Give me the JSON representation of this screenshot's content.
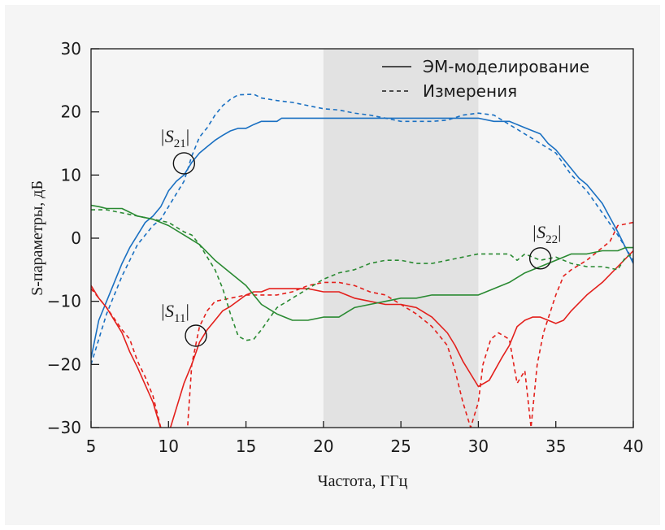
{
  "chart_data": {
    "type": "line",
    "xlabel": "Частота, ГГц",
    "ylabel": "S-параметры, дБ",
    "xlim": [
      5,
      40
    ],
    "ylim": [
      -30,
      30
    ],
    "xticks": [
      5,
      10,
      15,
      20,
      25,
      30,
      35,
      40
    ],
    "yticks": [
      30,
      20,
      10,
      0,
      -10,
      -20,
      -30
    ],
    "ytick_labels": [
      "30",
      "20",
      "10",
      "0",
      "−10",
      "−20",
      "−30"
    ],
    "grid": false,
    "shaded_band": {
      "x": [
        20,
        30
      ],
      "color": "#e2e2e2"
    },
    "legend": {
      "placement": "top-right",
      "entries": [
        {
          "label": "ЭМ-моделирование",
          "style": "solid"
        },
        {
          "label": "Измерения",
          "style": "dashed"
        }
      ]
    },
    "colors": {
      "s21": "#1a70c2",
      "s11": "#e3201c",
      "s22": "#2a8a32",
      "axis": "#1a1a1a",
      "background": "#f5f5f5"
    },
    "series": [
      {
        "name": "|S21| ЭМ-моделирование",
        "color_key": "s21",
        "style": "solid",
        "points": [
          [
            5,
            -19
          ],
          [
            5.5,
            -13
          ],
          [
            6,
            -10
          ],
          [
            7,
            -4
          ],
          [
            7.5,
            -1.5
          ],
          [
            8,
            0.5
          ],
          [
            8.5,
            2.5
          ],
          [
            9,
            3.5
          ],
          [
            9.5,
            5
          ],
          [
            10,
            7.5
          ],
          [
            10.5,
            9
          ],
          [
            11,
            10
          ],
          [
            11.5,
            12
          ],
          [
            12,
            13.5
          ],
          [
            12.5,
            14.5
          ],
          [
            13,
            15.5
          ],
          [
            13.5,
            16.3
          ],
          [
            14,
            17
          ],
          [
            14.5,
            17.4
          ],
          [
            15,
            17.4
          ],
          [
            15.5,
            18
          ],
          [
            16,
            18.5
          ],
          [
            17,
            18.5
          ],
          [
            17.3,
            19
          ],
          [
            20,
            19
          ],
          [
            25,
            19
          ],
          [
            30,
            19
          ],
          [
            31,
            18.5
          ],
          [
            32,
            18.5
          ],
          [
            33,
            17.5
          ],
          [
            34,
            16.5
          ],
          [
            34.5,
            15
          ],
          [
            35,
            14
          ],
          [
            35.5,
            12.5
          ],
          [
            36,
            11
          ],
          [
            36.5,
            9.5
          ],
          [
            37,
            8.5
          ],
          [
            38,
            5.5
          ],
          [
            39,
            1
          ],
          [
            40,
            -4
          ]
        ]
      },
      {
        "name": "|S21| Измерения",
        "color_key": "s21",
        "style": "dashed",
        "points": [
          [
            5,
            -20
          ],
          [
            6,
            -12
          ],
          [
            7,
            -6
          ],
          [
            8,
            -1
          ],
          [
            9,
            2
          ],
          [
            9.5,
            3
          ],
          [
            10,
            5
          ],
          [
            10.5,
            7
          ],
          [
            11,
            9
          ],
          [
            11.5,
            13
          ],
          [
            12,
            16
          ],
          [
            12.5,
            17.5
          ],
          [
            13,
            19.5
          ],
          [
            13.5,
            21
          ],
          [
            14,
            22
          ],
          [
            14.5,
            22.7
          ],
          [
            15.5,
            22.8
          ],
          [
            16,
            22.2
          ],
          [
            17,
            21.8
          ],
          [
            18,
            21.5
          ],
          [
            19,
            21
          ],
          [
            20,
            20.5
          ],
          [
            21,
            20.3
          ],
          [
            22,
            19.8
          ],
          [
            23,
            19.5
          ],
          [
            24,
            19
          ],
          [
            25,
            18.5
          ],
          [
            27,
            18.5
          ],
          [
            28,
            18.7
          ],
          [
            29,
            19.5
          ],
          [
            30,
            19.8
          ],
          [
            31,
            19.5
          ],
          [
            32,
            18
          ],
          [
            33,
            16.5
          ],
          [
            34,
            15
          ],
          [
            35,
            13.5
          ],
          [
            36,
            10
          ],
          [
            37,
            7.5
          ],
          [
            38,
            4
          ],
          [
            39,
            0.5
          ],
          [
            40,
            -3.5
          ]
        ]
      },
      {
        "name": "|S11| ЭМ-моделирование",
        "color_key": "s11",
        "style": "solid",
        "points": [
          [
            5,
            -7.5
          ],
          [
            5.5,
            -9.5
          ],
          [
            6,
            -11
          ],
          [
            7,
            -15
          ],
          [
            7.5,
            -18
          ],
          [
            8,
            -20.5
          ],
          [
            9,
            -26
          ],
          [
            9.6,
            -31
          ],
          [
            10,
            -31
          ],
          [
            10.5,
            -27
          ],
          [
            11,
            -23
          ],
          [
            11.5,
            -20
          ],
          [
            12,
            -16.5
          ],
          [
            12.5,
            -14.5
          ],
          [
            13,
            -13
          ],
          [
            13.5,
            -11.5
          ],
          [
            14,
            -10.8
          ],
          [
            15,
            -9
          ],
          [
            15.5,
            -8.5
          ],
          [
            16,
            -8.5
          ],
          [
            16.5,
            -8
          ],
          [
            19,
            -8
          ],
          [
            20,
            -8.5
          ],
          [
            21,
            -8.5
          ],
          [
            22,
            -9.5
          ],
          [
            24,
            -10.5
          ],
          [
            25,
            -10.5
          ],
          [
            26,
            -11
          ],
          [
            27,
            -12.5
          ],
          [
            28,
            -15
          ],
          [
            28.5,
            -17
          ],
          [
            29,
            -19.5
          ],
          [
            29.5,
            -21.5
          ],
          [
            30,
            -23.5
          ],
          [
            30.7,
            -22.5
          ],
          [
            31.5,
            -19
          ],
          [
            32,
            -17
          ],
          [
            32.5,
            -14
          ],
          [
            33,
            -13
          ],
          [
            33.5,
            -12.5
          ],
          [
            34,
            -12.5
          ],
          [
            34.5,
            -13
          ],
          [
            35,
            -13.5
          ],
          [
            35.5,
            -13
          ],
          [
            36,
            -11.5
          ],
          [
            37,
            -9
          ],
          [
            38,
            -7
          ],
          [
            39,
            -4.5
          ],
          [
            40,
            -2
          ]
        ]
      },
      {
        "name": "|S11| Измерения",
        "color_key": "s11",
        "style": "dashed",
        "points": [
          [
            5,
            -8
          ],
          [
            6,
            -11
          ],
          [
            7,
            -14.5
          ],
          [
            7.5,
            -16
          ],
          [
            8,
            -19.5
          ],
          [
            8.5,
            -22
          ],
          [
            9,
            -25
          ],
          [
            9.6,
            -31
          ],
          [
            11.2,
            -31
          ],
          [
            11.5,
            -20
          ],
          [
            12,
            -14
          ],
          [
            12.5,
            -11.5
          ],
          [
            13,
            -10
          ],
          [
            14,
            -9.5
          ],
          [
            15,
            -9
          ],
          [
            17,
            -9
          ],
          [
            18,
            -8.5
          ],
          [
            19,
            -7.5
          ],
          [
            20,
            -7
          ],
          [
            21,
            -7
          ],
          [
            22,
            -7.5
          ],
          [
            23,
            -8.5
          ],
          [
            24,
            -9
          ],
          [
            25,
            -10.5
          ],
          [
            26,
            -12
          ],
          [
            27,
            -14
          ],
          [
            28,
            -17
          ],
          [
            28.5,
            -21
          ],
          [
            29,
            -26
          ],
          [
            29.5,
            -30
          ],
          [
            30,
            -26
          ],
          [
            30.3,
            -20
          ],
          [
            30.8,
            -16
          ],
          [
            31.3,
            -15
          ],
          [
            32,
            -16
          ],
          [
            32.5,
            -23
          ],
          [
            33,
            -21
          ],
          [
            33.4,
            -30
          ],
          [
            33.8,
            -20
          ],
          [
            34.2,
            -15
          ],
          [
            35,
            -9
          ],
          [
            35.5,
            -6
          ],
          [
            36,
            -5
          ],
          [
            37,
            -3.5
          ],
          [
            38,
            -1.5
          ],
          [
            38.5,
            -0.5
          ],
          [
            39,
            2
          ],
          [
            40,
            2.5
          ]
        ]
      },
      {
        "name": "|S22| ЭМ-моделирование",
        "color_key": "s22",
        "style": "solid",
        "points": [
          [
            5,
            5.2
          ],
          [
            5.5,
            5
          ],
          [
            6,
            4.7
          ],
          [
            7,
            4.7
          ],
          [
            8,
            3.5
          ],
          [
            9,
            3
          ],
          [
            10,
            2
          ],
          [
            11,
            0.5
          ],
          [
            12,
            -1
          ],
          [
            13,
            -3.5
          ],
          [
            14,
            -5.5
          ],
          [
            15,
            -7.5
          ],
          [
            15.5,
            -9
          ],
          [
            16,
            -10.5
          ],
          [
            17,
            -12
          ],
          [
            18,
            -13
          ],
          [
            19,
            -13
          ],
          [
            20,
            -12.5
          ],
          [
            21,
            -12.5
          ],
          [
            22,
            -11
          ],
          [
            23,
            -10.5
          ],
          [
            24,
            -10
          ],
          [
            25,
            -9.5
          ],
          [
            26,
            -9.5
          ],
          [
            27,
            -9
          ],
          [
            30,
            -9
          ],
          [
            31,
            -8
          ],
          [
            32,
            -7
          ],
          [
            33,
            -5.5
          ],
          [
            34,
            -4.5
          ],
          [
            35,
            -3.5
          ],
          [
            36,
            -2.5
          ],
          [
            37,
            -2.5
          ],
          [
            38,
            -2
          ],
          [
            39,
            -2
          ],
          [
            39.5,
            -1.5
          ],
          [
            40,
            -1.5
          ]
        ]
      },
      {
        "name": "|S22| Измерения",
        "color_key": "s22",
        "style": "dashed",
        "points": [
          [
            5,
            4.5
          ],
          [
            6,
            4.5
          ],
          [
            7,
            4
          ],
          [
            8,
            3.5
          ],
          [
            9,
            3
          ],
          [
            10,
            2.5
          ],
          [
            11,
            1
          ],
          [
            11.5,
            0.5
          ],
          [
            12,
            -1
          ],
          [
            12.5,
            -3
          ],
          [
            13,
            -5
          ],
          [
            13.5,
            -8
          ],
          [
            14,
            -12
          ],
          [
            14.5,
            -15.5
          ],
          [
            15,
            -16.2
          ],
          [
            15.5,
            -16
          ],
          [
            16,
            -14.5
          ],
          [
            17,
            -11
          ],
          [
            18,
            -9.5
          ],
          [
            19,
            -8
          ],
          [
            20,
            -6.5
          ],
          [
            21,
            -5.5
          ],
          [
            22,
            -5
          ],
          [
            23,
            -4
          ],
          [
            24,
            -3.5
          ],
          [
            25,
            -3.5
          ],
          [
            26,
            -4
          ],
          [
            27,
            -4
          ],
          [
            28,
            -3.5
          ],
          [
            29,
            -3
          ],
          [
            30,
            -2.5
          ],
          [
            32,
            -2.5
          ],
          [
            32.5,
            -3.5
          ],
          [
            33,
            -2.5
          ],
          [
            34,
            -3.5
          ],
          [
            35,
            -3
          ],
          [
            36,
            -4
          ],
          [
            37,
            -4.5
          ],
          [
            38,
            -4.5
          ],
          [
            39,
            -5
          ],
          [
            39.5,
            -3
          ],
          [
            40,
            -2.5
          ]
        ]
      }
    ],
    "annotations": [
      {
        "label": "S21",
        "label_at": [
          10.4,
          15.2
        ],
        "circle_at": [
          11.0,
          11.85
        ]
      },
      {
        "label": "S11",
        "label_at": [
          10.4,
          -12.5
        ],
        "circle_at": [
          11.77,
          -15.45
        ]
      },
      {
        "label": "S22",
        "label_at": [
          34.4,
          0
        ],
        "circle_at": [
          34.0,
          -3.2
        ]
      }
    ]
  }
}
